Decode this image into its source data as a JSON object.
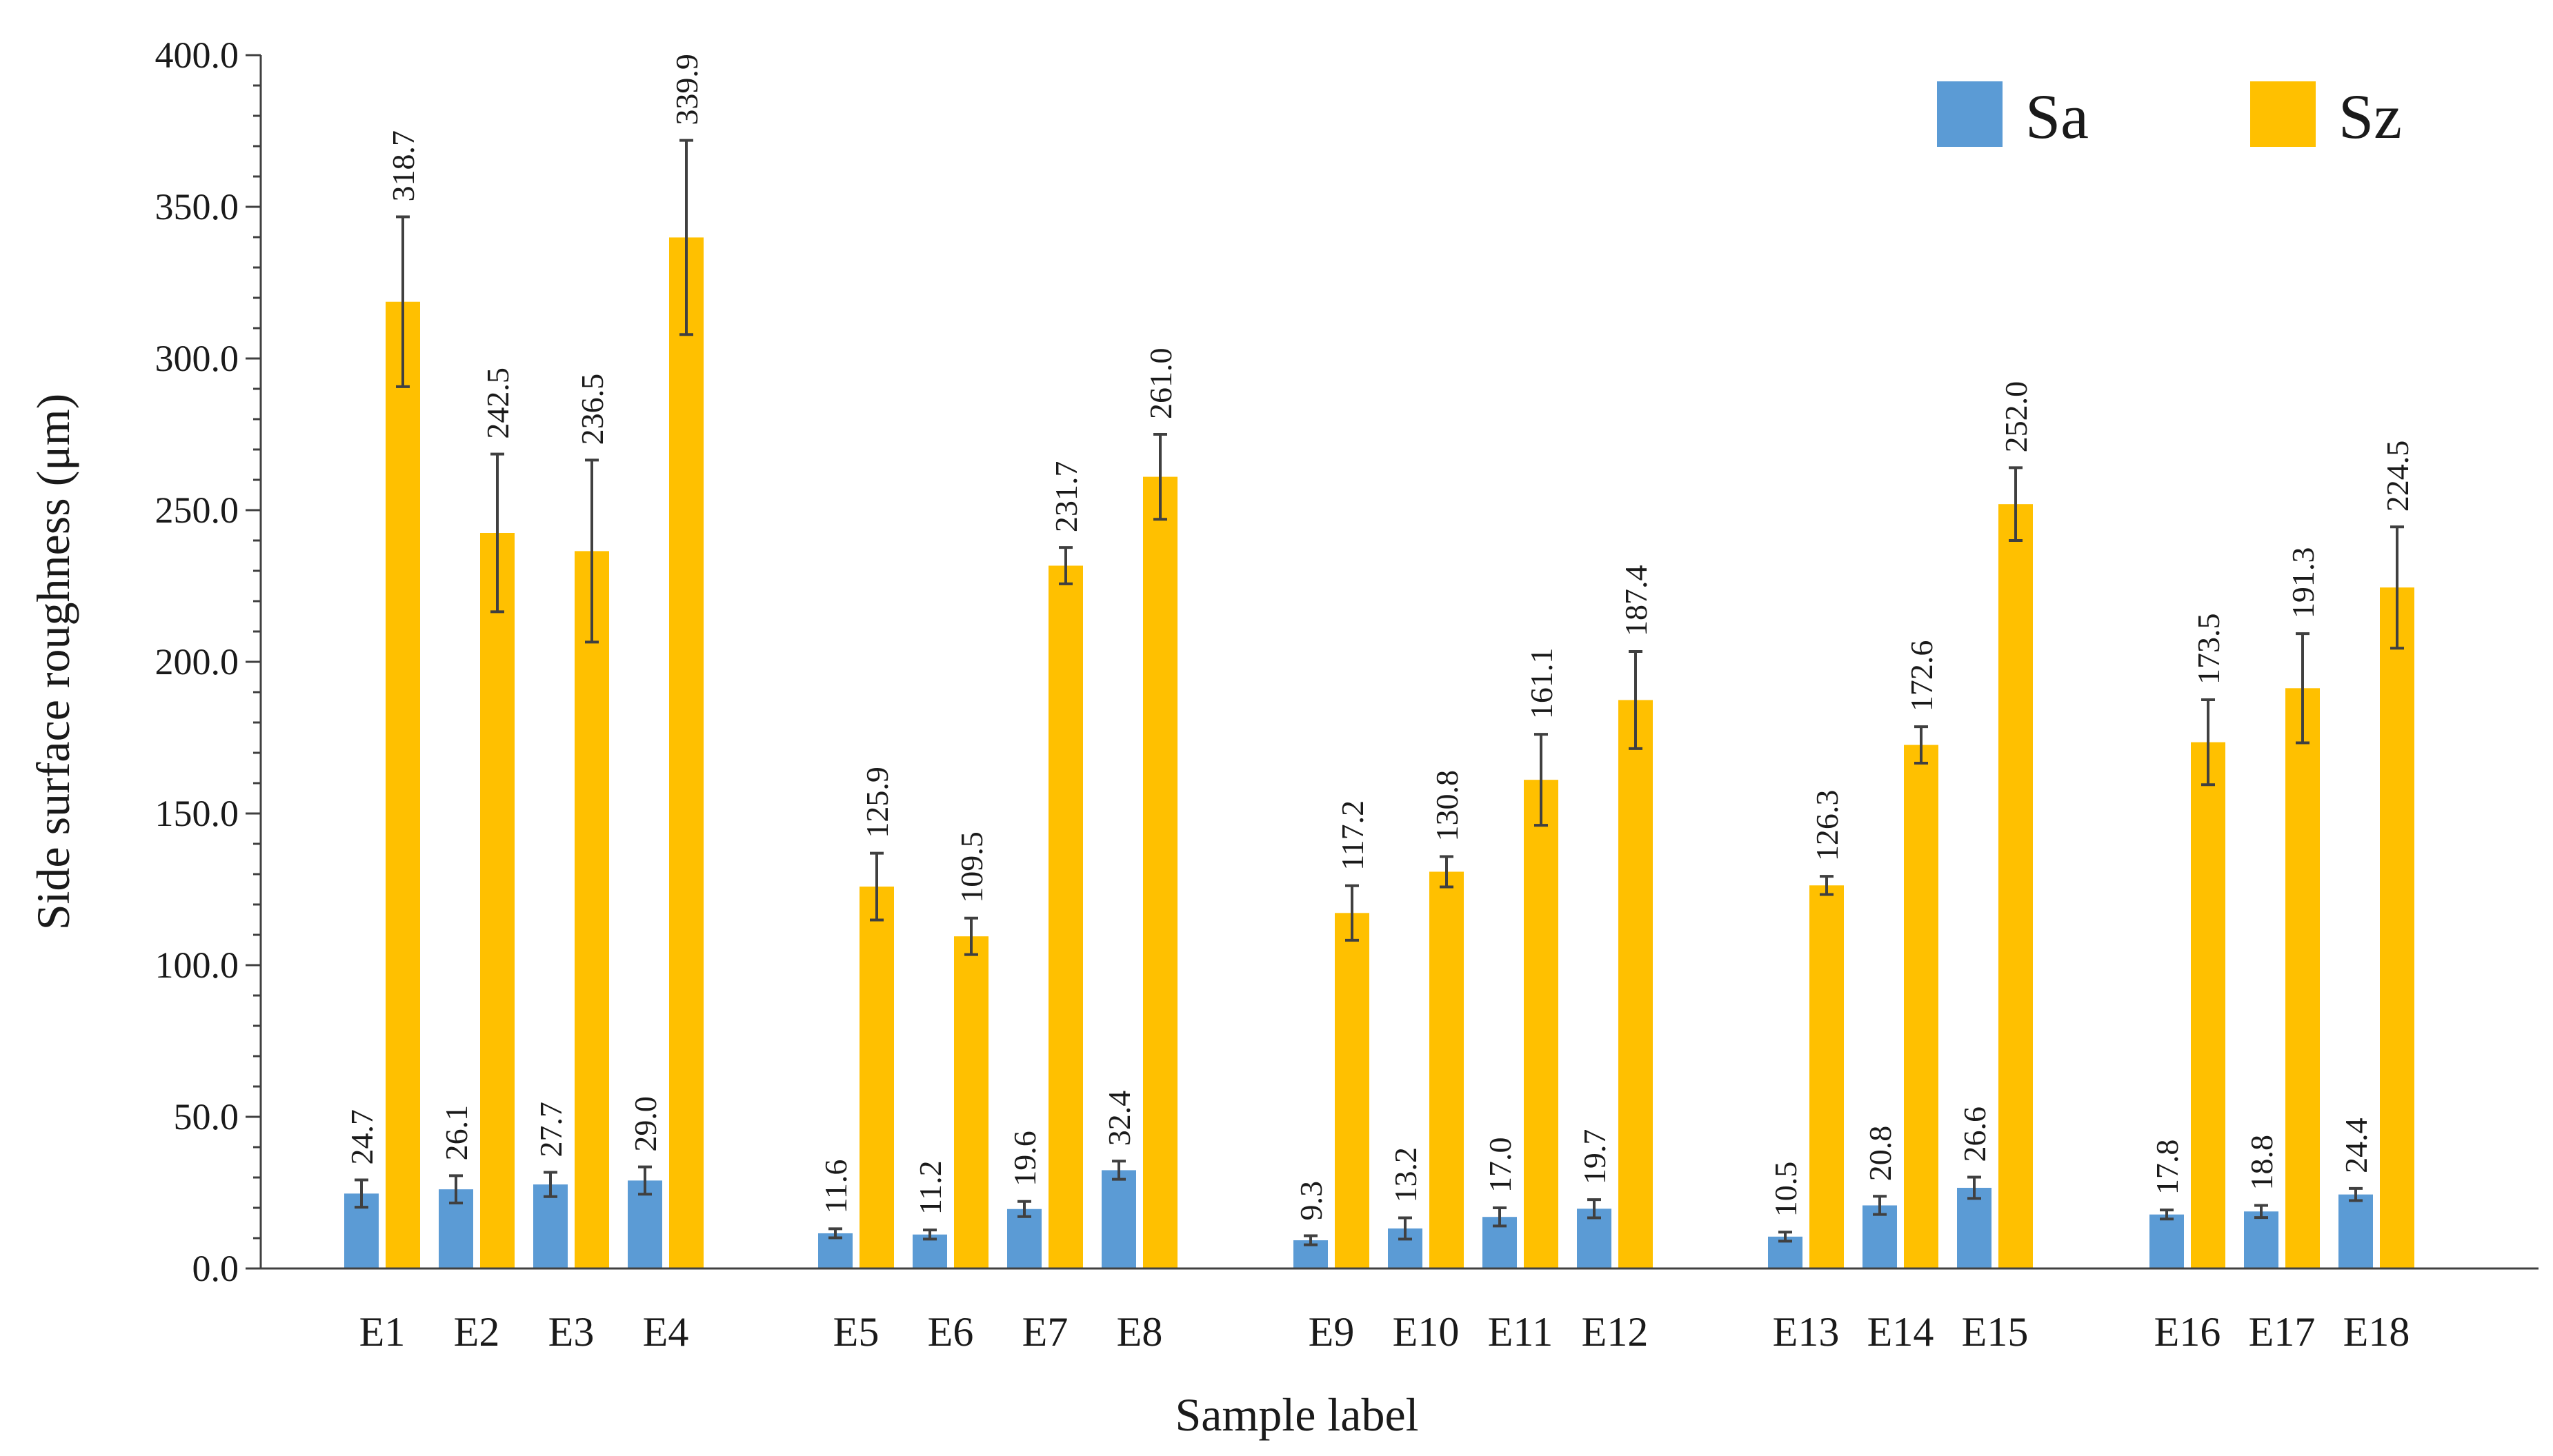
{
  "chart_data": {
    "type": "bar",
    "xlabel": "Sample label",
    "ylabel": "Side surface roughness (μm)",
    "ylim": [
      0,
      400
    ],
    "yticks": [
      "0.0",
      "50.0",
      "100.0",
      "150.0",
      "200.0",
      "250.0",
      "300.0",
      "350.0",
      "400.0"
    ],
    "legend_position": "top-right",
    "groups": [
      [
        "E1",
        "E2",
        "E3",
        "E4"
      ],
      [
        "E5",
        "E6",
        "E7",
        "E8"
      ],
      [
        "E9",
        "E10",
        "E11",
        "E12"
      ],
      [
        "E13",
        "E14",
        "E15"
      ],
      [
        "E16",
        "E17",
        "E18"
      ]
    ],
    "categories": [
      "E1",
      "E2",
      "E3",
      "E4",
      "E5",
      "E6",
      "E7",
      "E8",
      "E9",
      "E10",
      "E11",
      "E12",
      "E13",
      "E14",
      "E15",
      "E16",
      "E17",
      "E18"
    ],
    "series": [
      {
        "name": "Sa",
        "color": "#5B9BD5",
        "values": [
          24.7,
          26.1,
          27.7,
          29.0,
          11.6,
          11.2,
          19.6,
          32.4,
          9.3,
          13.2,
          17.0,
          19.7,
          10.5,
          20.8,
          26.6,
          17.8,
          18.8,
          24.4
        ],
        "labels": [
          "24.7",
          "26.1",
          "27.7",
          "29.0",
          "11.6",
          "11.2",
          "19.6",
          "32.4",
          "9.3",
          "13.2",
          "17.0",
          "19.7",
          "10.5",
          "20.8",
          "26.6",
          "17.8",
          "18.8",
          "24.4"
        ],
        "errors": [
          4.5,
          4.5,
          4,
          4.5,
          1.5,
          1.5,
          2.5,
          3,
          1.5,
          3.5,
          3,
          3,
          1.5,
          3,
          3.5,
          1.5,
          2,
          2
        ]
      },
      {
        "name": "Sz",
        "color": "#FFC000",
        "values": [
          318.7,
          242.5,
          236.5,
          339.9,
          125.9,
          109.5,
          231.7,
          261.0,
          117.2,
          130.8,
          161.1,
          187.4,
          126.3,
          172.6,
          252.0,
          173.5,
          191.3,
          224.5
        ],
        "labels": [
          "318.7",
          "242.5",
          "236.5",
          "339.9",
          "125.9",
          "109.5",
          "231.7",
          "261.0",
          "117.2",
          "130.8",
          "161.1",
          "187.4",
          "126.3",
          "172.6",
          "252.0",
          "173.5",
          "191.3",
          "224.5"
        ],
        "errors": [
          28,
          26,
          30,
          32,
          11,
          6,
          6,
          14,
          9,
          5,
          15,
          16,
          3,
          6,
          12,
          14,
          18,
          20
        ]
      }
    ]
  }
}
